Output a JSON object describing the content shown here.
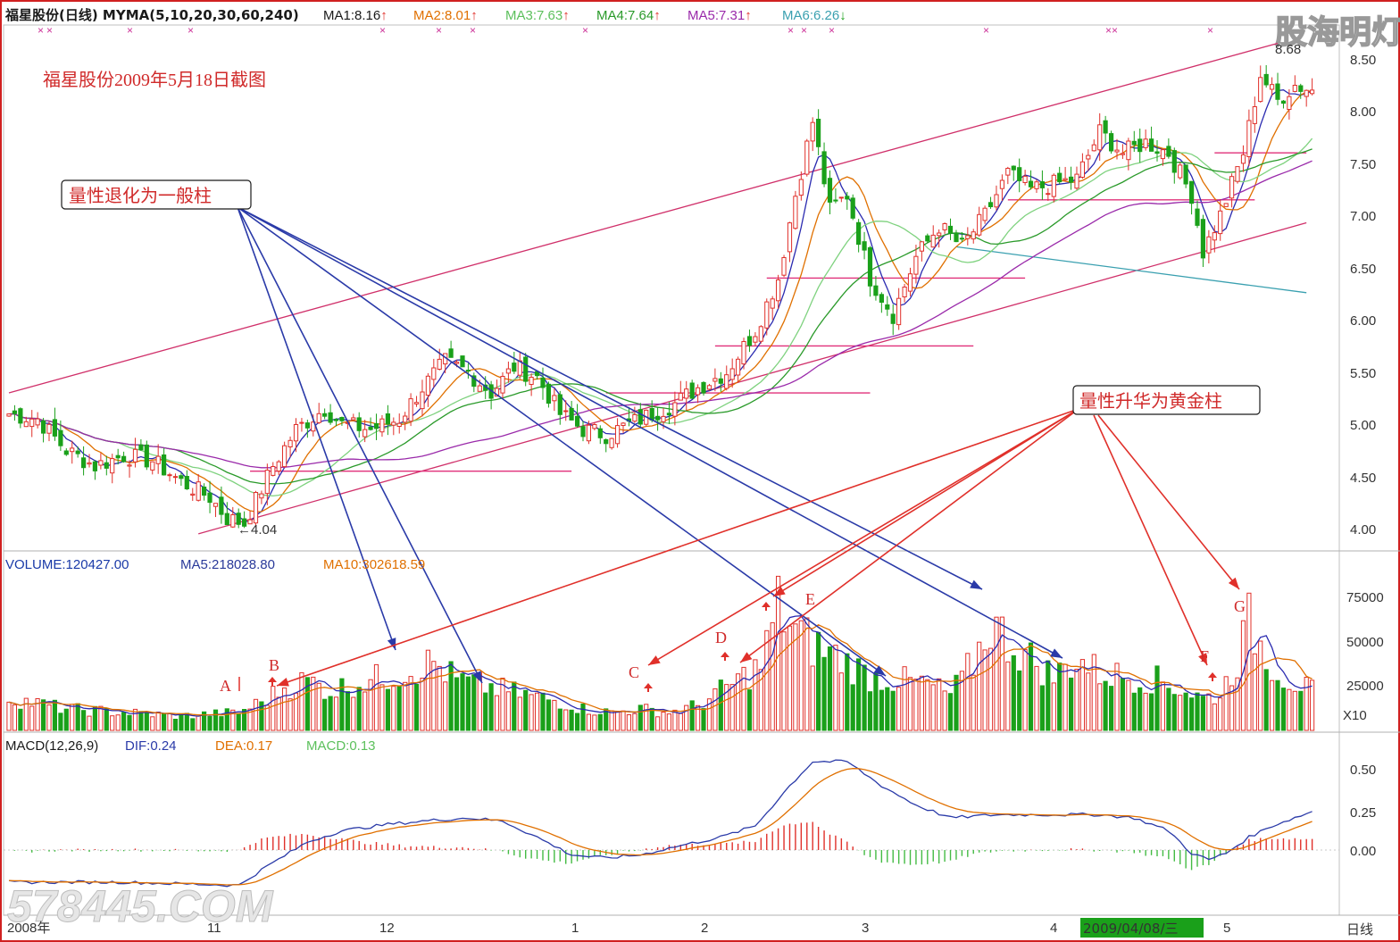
{
  "header": {
    "title": "福星股份(日线) MYMA(5,10,20,30,60,240)",
    "ma_items": [
      {
        "label": "MA1:8.16",
        "arrow": "↑",
        "color": "#1a1a1a"
      },
      {
        "label": "MA2:8.01",
        "arrow": "↑",
        "color": "#e07000"
      },
      {
        "label": "MA3:7.63",
        "arrow": "↑",
        "color": "#6ccf6c"
      },
      {
        "label": "MA4:7.64",
        "arrow": "↑",
        "color": "#2a9a2a"
      },
      {
        "label": "MA5:7.31",
        "arrow": "↑",
        "color": "#9a2aaa"
      },
      {
        "label": "MA6:6.26",
        "arrow": "↓",
        "color": "#3aa0b0"
      }
    ]
  },
  "watermark_brand": "股海明灯",
  "watermark_bottom": "578445.COM",
  "caption": "福星股份2009年5月18日截图",
  "annotations": {
    "degrade": "量性退化为一般柱",
    "upgrade": "量性升华为黄金柱",
    "low_label": "←4.04",
    "high_label": "8.68",
    "letters": [
      "A",
      "B",
      "C",
      "D",
      "E",
      "F",
      "G"
    ]
  },
  "volume_header": {
    "volume": "VOLUME:120427.00",
    "ma5": "MA5:218028.80",
    "ma10": "MA10:302618.59",
    "unit": "X10"
  },
  "macd_header": {
    "name": "MACD(12,26,9)",
    "dif": "DIF:0.24",
    "dea": "DEA:0.17",
    "macd": "MACD:0.13"
  },
  "axis": {
    "price_ticks": [
      "8.50",
      "8.00",
      "7.50",
      "7.00",
      "6.50",
      "6.00",
      "5.50",
      "5.00",
      "4.50",
      "4.00"
    ],
    "volume_ticks": [
      "75000",
      "50000",
      "25000"
    ],
    "macd_ticks": [
      "0.50",
      "0.25",
      "0.00"
    ],
    "time_labels": [
      "2008年",
      "11",
      "12",
      "1",
      "2",
      "3",
      "4",
      "5"
    ],
    "cursor_date": "2009/04/08/三",
    "period": "日线"
  },
  "colors": {
    "up": "#e0302a",
    "down": "#1aa01a",
    "frame": "#d02020",
    "blue_arrow": "#2a3aa8",
    "red_arrow": "#e0302a",
    "trend_line": "#d0306a"
  },
  "chart_data": {
    "type": "candlestick",
    "price_range": [
      3.9,
      8.7
    ],
    "volume_range": [
      0,
      100000
    ],
    "macd_range": [
      -0.3,
      0.62
    ],
    "price_keyframes": [
      [
        0,
        5.1
      ],
      [
        5,
        5.05
      ],
      [
        10,
        4.75
      ],
      [
        15,
        4.6
      ],
      [
        20,
        4.7
      ],
      [
        25,
        4.65
      ],
      [
        30,
        4.45
      ],
      [
        35,
        4.3
      ],
      [
        38,
        4.1
      ],
      [
        41,
        4.05
      ],
      [
        46,
        4.6
      ],
      [
        50,
        4.95
      ],
      [
        55,
        5.15
      ],
      [
        58,
        5.0
      ],
      [
        63,
        4.95
      ],
      [
        68,
        5.05
      ],
      [
        72,
        5.35
      ],
      [
        76,
        5.6
      ],
      [
        80,
        5.5
      ],
      [
        84,
        5.3
      ],
      [
        88,
        5.55
      ],
      [
        92,
        5.45
      ],
      [
        96,
        5.1
      ],
      [
        100,
        4.95
      ],
      [
        104,
        4.9
      ],
      [
        108,
        5.0
      ],
      [
        112,
        5.1
      ],
      [
        116,
        5.2
      ],
      [
        120,
        5.35
      ],
      [
        125,
        5.5
      ],
      [
        130,
        5.9
      ],
      [
        134,
        6.4
      ],
      [
        137,
        7.2
      ],
      [
        140,
        7.9
      ],
      [
        143,
        7.05
      ],
      [
        146,
        7.2
      ],
      [
        150,
        6.4
      ],
      [
        154,
        6.05
      ],
      [
        158,
        6.6
      ],
      [
        162,
        6.9
      ],
      [
        166,
        6.7
      ],
      [
        170,
        7.0
      ],
      [
        174,
        7.4
      ],
      [
        178,
        7.25
      ],
      [
        182,
        7.3
      ],
      [
        186,
        7.35
      ],
      [
        190,
        7.8
      ],
      [
        194,
        7.6
      ],
      [
        198,
        7.7
      ],
      [
        202,
        7.6
      ],
      [
        206,
        7.2
      ],
      [
        208,
        6.65
      ],
      [
        211,
        7.0
      ],
      [
        215,
        7.6
      ],
      [
        218,
        8.35
      ],
      [
        221,
        8.1
      ],
      [
        224,
        8.25
      ],
      [
        227,
        8.2
      ]
    ],
    "volume_keyframes": [
      [
        0,
        18000
      ],
      [
        5,
        15000
      ],
      [
        10,
        12000
      ],
      [
        20,
        10000
      ],
      [
        30,
        8000
      ],
      [
        40,
        10000
      ],
      [
        44,
        16000
      ],
      [
        48,
        24000
      ],
      [
        52,
        28000
      ],
      [
        56,
        22000
      ],
      [
        60,
        26000
      ],
      [
        66,
        30000
      ],
      [
        70,
        34000
      ],
      [
        74,
        38000
      ],
      [
        78,
        28000
      ],
      [
        84,
        24000
      ],
      [
        90,
        20000
      ],
      [
        96,
        16000
      ],
      [
        100,
        12000
      ],
      [
        105,
        10000
      ],
      [
        110,
        12000
      ],
      [
        115,
        10000
      ],
      [
        120,
        14000
      ],
      [
        125,
        24000
      ],
      [
        128,
        30000
      ],
      [
        131,
        36000
      ],
      [
        134,
        70000
      ],
      [
        137,
        55000
      ],
      [
        140,
        48000
      ],
      [
        145,
        40000
      ],
      [
        150,
        30000
      ],
      [
        155,
        28000
      ],
      [
        160,
        26000
      ],
      [
        164,
        20000
      ],
      [
        168,
        38000
      ],
      [
        171,
        60000
      ],
      [
        174,
        50000
      ],
      [
        178,
        40000
      ],
      [
        182,
        30000
      ],
      [
        186,
        40000
      ],
      [
        190,
        32000
      ],
      [
        195,
        30000
      ],
      [
        200,
        28000
      ],
      [
        205,
        22000
      ],
      [
        208,
        18000
      ],
      [
        211,
        20000
      ],
      [
        214,
        40000
      ],
      [
        216,
        60000
      ],
      [
        219,
        42000
      ],
      [
        222,
        30000
      ],
      [
        227,
        22000
      ]
    ],
    "macd_keyframes": [
      [
        0,
        -0.2
      ],
      [
        20,
        -0.2
      ],
      [
        40,
        -0.22
      ],
      [
        45,
        -0.1
      ],
      [
        52,
        0.05
      ],
      [
        58,
        0.12
      ],
      [
        66,
        0.16
      ],
      [
        72,
        0.18
      ],
      [
        80,
        0.2
      ],
      [
        86,
        0.18
      ],
      [
        92,
        0.08
      ],
      [
        98,
        -0.03
      ],
      [
        104,
        -0.05
      ],
      [
        110,
        -0.03
      ],
      [
        116,
        0.02
      ],
      [
        124,
        0.08
      ],
      [
        130,
        0.15
      ],
      [
        136,
        0.4
      ],
      [
        140,
        0.55
      ],
      [
        146,
        0.55
      ],
      [
        152,
        0.4
      ],
      [
        158,
        0.28
      ],
      [
        164,
        0.2
      ],
      [
        172,
        0.22
      ],
      [
        180,
        0.22
      ],
      [
        190,
        0.22
      ],
      [
        196,
        0.2
      ],
      [
        202,
        0.12
      ],
      [
        206,
        -0.02
      ],
      [
        209,
        -0.06
      ],
      [
        212,
        -0.02
      ],
      [
        216,
        0.08
      ],
      [
        220,
        0.15
      ],
      [
        227,
        0.24
      ]
    ],
    "low_price": 4.04,
    "high_price": 8.68,
    "horizontal_levels": [
      {
        "price": 4.55,
        "from": 42,
        "to": 98
      },
      {
        "price": 5.3,
        "from": 104,
        "to": 150
      },
      {
        "price": 5.75,
        "from": 123,
        "to": 168
      },
      {
        "price": 6.4,
        "from": 132,
        "to": 177
      },
      {
        "price": 7.15,
        "from": 174,
        "to": 217
      },
      {
        "price": 7.6,
        "from": 210,
        "to": 226
      }
    ],
    "upper_trend": {
      "from": [
        0,
        5.3
      ],
      "to": [
        221,
        8.65
      ]
    },
    "lower_trend": {
      "from": [
        33,
        3.95
      ],
      "to": [
        226,
        6.93
      ]
    },
    "long_ma240": {
      "from": [
        165,
        6.7
      ],
      "to": [
        226,
        6.26
      ]
    }
  }
}
